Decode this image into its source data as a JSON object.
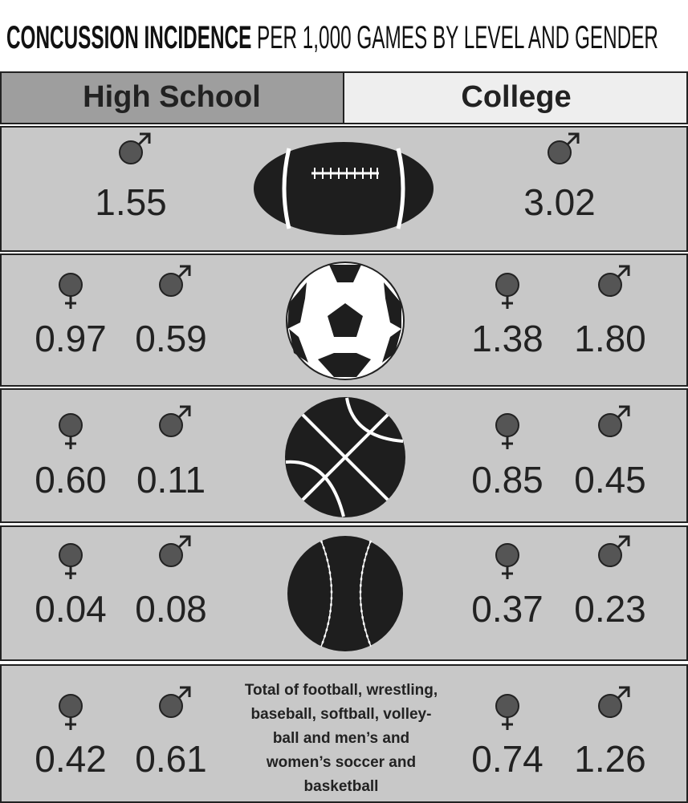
{
  "title": {
    "bold": "CONCUSSION INCIDENCE",
    "rest": "PER 1,000 GAMES BY LEVEL AND GENDER"
  },
  "headers": [
    "High School",
    "College"
  ],
  "rows": [
    {
      "high_school": {
        "male": "1.55"
      },
      "college": {
        "male": "3.02"
      }
    },
    {
      "high_school": {
        "female": "0.97",
        "male": "0.59"
      },
      "college": {
        "female": "1.38",
        "male": "1.80"
      }
    },
    {
      "high_school": {
        "female": "0.60",
        "male": "0.11"
      },
      "college": {
        "female": "0.85",
        "male": "0.45"
      }
    },
    {
      "high_school": {
        "female": "0.04",
        "male": "0.08"
      },
      "college": {
        "female": "0.37",
        "male": "0.23"
      }
    },
    {
      "high_school": {
        "female": "0.42",
        "male": "0.61"
      },
      "college": {
        "female": "0.74",
        "male": "1.26"
      },
      "note": [
        "Total of football, wrestling,",
        "baseball, softball, volley-",
        "ball and men’s and",
        "women’s soccer and",
        "basketball"
      ]
    }
  ]
}
